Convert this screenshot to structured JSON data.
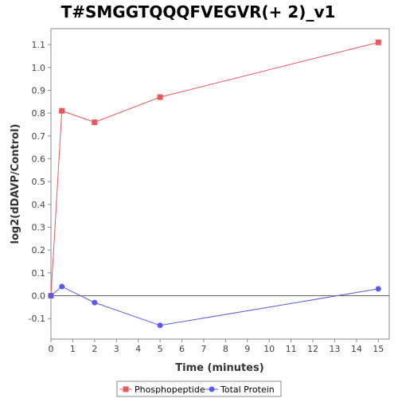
{
  "chart_data": {
    "type": "line",
    "title": "T#SMGGTQQQFVEGVR(+ 2)_v1",
    "xlabel": "Time (minutes)",
    "ylabel": "log2(dDAVP/Control)",
    "xlim": [
      0,
      15.5
    ],
    "ylim": [
      -0.19,
      1.17
    ],
    "xticks": [
      0,
      1,
      2,
      3,
      4,
      5,
      6,
      7,
      8,
      9,
      10,
      11,
      12,
      13,
      14,
      15
    ],
    "yticks": [
      -0.1,
      0.0,
      0.1,
      0.2,
      0.3,
      0.4,
      0.5,
      0.6,
      0.7,
      0.8,
      0.9,
      1.0,
      1.1
    ],
    "ytick_labels": [
      "-0.1",
      "0.0",
      "0.1",
      "0.2",
      "0.3",
      "0.4",
      "0.5",
      "0.6",
      "0.7",
      "0.8",
      "0.9",
      "1.0",
      "1.1"
    ],
    "grid": false,
    "zero_line": true,
    "legend_position": "bottom",
    "series": [
      {
        "name": "Phosphopeptide",
        "color": "#e8585c",
        "marker": "square",
        "x": [
          0,
          0.5,
          2,
          5,
          15
        ],
        "y": [
          0.0,
          0.81,
          0.76,
          0.87,
          1.11
        ]
      },
      {
        "name": "Total Protein",
        "color": "#5a5aee",
        "marker": "circle",
        "x": [
          0,
          0.5,
          2,
          5,
          15
        ],
        "y": [
          0.0,
          0.04,
          -0.03,
          -0.13,
          0.03
        ]
      }
    ]
  }
}
